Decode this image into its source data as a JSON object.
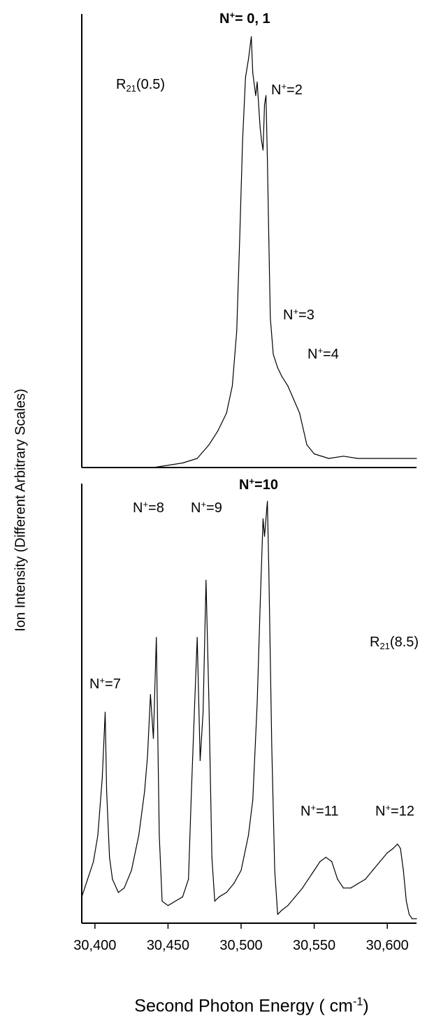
{
  "figure": {
    "ylabel": "Ion Intensity (Different Arbitrary Scales)",
    "xlabel": {
      "text": "Second Photon Energy ( cm",
      "sup": "-1",
      "tail": ")"
    }
  },
  "chart_data": [
    {
      "type": "line",
      "panel": "top",
      "xlim": [
        30391,
        30620
      ],
      "ylim": [
        0,
        1
      ],
      "grid": false,
      "labels": [
        {
          "id": "n01",
          "base": "N",
          "sup": "+",
          "text": "= 0, 1",
          "bold": true
        },
        {
          "id": "r21",
          "base": "R",
          "sub": "21",
          "text": "(0.5)"
        },
        {
          "id": "n2",
          "base": "N",
          "sup": "+",
          "text": "=2"
        },
        {
          "id": "n3",
          "base": "N",
          "sup": "+",
          "text": "=3"
        },
        {
          "id": "n4",
          "base": "N",
          "sup": "+",
          "text": "=4"
        }
      ],
      "x": [
        30391,
        30440,
        30460,
        30470,
        30478,
        30484,
        30490,
        30494,
        30497,
        30499,
        30501,
        30503,
        30505,
        30507,
        30508,
        30510,
        30511,
        30512,
        30513,
        30514,
        30515,
        30516,
        30517,
        30518,
        30519,
        30520,
        30522,
        30525,
        30528,
        30532,
        30536,
        30540,
        30545,
        30550,
        30560,
        30570,
        30580,
        30590,
        30600,
        30610,
        30620
      ],
      "y": [
        0.0,
        0.0,
        0.01,
        0.02,
        0.05,
        0.08,
        0.12,
        0.18,
        0.3,
        0.5,
        0.72,
        0.86,
        0.9,
        0.95,
        0.87,
        0.82,
        0.85,
        0.8,
        0.75,
        0.72,
        0.7,
        0.8,
        0.82,
        0.68,
        0.5,
        0.33,
        0.25,
        0.22,
        0.2,
        0.18,
        0.15,
        0.12,
        0.05,
        0.03,
        0.02,
        0.025,
        0.02,
        0.02,
        0.02,
        0.02,
        0.02
      ]
    },
    {
      "type": "line",
      "panel": "bottom",
      "xlim": [
        30391,
        30620
      ],
      "ylim": [
        0,
        1
      ],
      "grid": false,
      "labels": [
        {
          "id": "n10",
          "base": "N",
          "sup": "+",
          "text": "=10",
          "bold": true
        },
        {
          "id": "n8",
          "base": "N",
          "sup": "+",
          "text": "=8"
        },
        {
          "id": "n9",
          "base": "N",
          "sup": "+",
          "text": "=9"
        },
        {
          "id": "r85",
          "base": "R",
          "sub": "21",
          "text": "(8.5)"
        },
        {
          "id": "n7",
          "base": "N",
          "sup": "+",
          "text": "=7"
        },
        {
          "id": "n11",
          "base": "N",
          "sup": "+",
          "text": "=11"
        },
        {
          "id": "n12",
          "base": "N",
          "sup": "+",
          "text": "=12"
        }
      ],
      "x": [
        30391,
        30395,
        30399,
        30402,
        30405,
        30407,
        30408,
        30410,
        30412,
        30416,
        30420,
        30425,
        30430,
        30434,
        30436,
        30438,
        30440,
        30442,
        30444,
        30446,
        30450,
        30455,
        30460,
        30464,
        30466,
        30468,
        30470,
        30472,
        30474,
        30476,
        30478,
        30480,
        30482,
        30485,
        30490,
        30495,
        30500,
        30505,
        30508,
        30511,
        30513,
        30515,
        30516,
        30518,
        30519,
        30521,
        30523,
        30525,
        30528,
        30532,
        30537,
        30542,
        30546,
        30550,
        30554,
        30558,
        30562,
        30566,
        30570,
        30575,
        30580,
        30585,
        30590,
        30595,
        30600,
        30604,
        30607,
        30609,
        30611,
        30613,
        30615,
        30617,
        30620
      ],
      "y": [
        0.06,
        0.1,
        0.14,
        0.2,
        0.33,
        0.48,
        0.3,
        0.15,
        0.1,
        0.07,
        0.08,
        0.12,
        0.2,
        0.3,
        0.38,
        0.52,
        0.42,
        0.65,
        0.2,
        0.05,
        0.04,
        0.05,
        0.06,
        0.1,
        0.3,
        0.48,
        0.65,
        0.37,
        0.48,
        0.78,
        0.5,
        0.15,
        0.05,
        0.06,
        0.07,
        0.09,
        0.12,
        0.2,
        0.28,
        0.5,
        0.72,
        0.92,
        0.88,
        0.96,
        0.8,
        0.4,
        0.12,
        0.02,
        0.03,
        0.04,
        0.06,
        0.08,
        0.1,
        0.12,
        0.14,
        0.15,
        0.14,
        0.1,
        0.08,
        0.08,
        0.09,
        0.1,
        0.12,
        0.14,
        0.16,
        0.17,
        0.18,
        0.17,
        0.12,
        0.05,
        0.02,
        0.01,
        0.01
      ],
      "xticks": [
        30400,
        30450,
        30500,
        30550,
        30600
      ],
      "xtick_labels": [
        "30,400",
        "30,450",
        "30,500",
        "30,550",
        "30,600"
      ]
    }
  ]
}
